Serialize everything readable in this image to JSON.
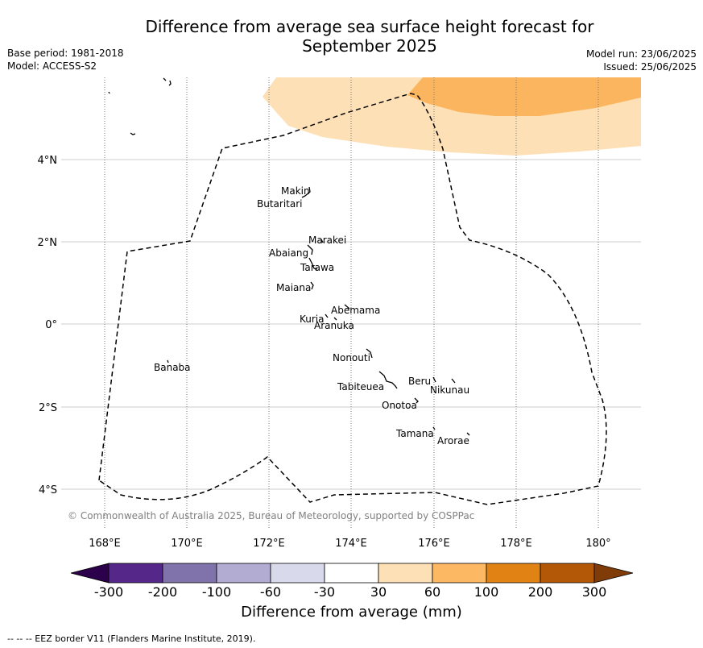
{
  "title_line1": "Difference from average sea surface height forecast for",
  "title_line2": "September 2025",
  "meta": {
    "base_period": "Base period: 1981-2018",
    "model": "Model: ACCESS-S2",
    "model_run": "Model run: 23/06/2025",
    "issued": "Issued: 25/06/2025"
  },
  "map": {
    "lat_labels": [
      "4°N",
      "2°N",
      "0°",
      "2°S",
      "4°S"
    ],
    "lon_labels": [
      "168°E",
      "170°E",
      "172°E",
      "174°E",
      "176°E",
      "178°E",
      "180°"
    ],
    "place_labels": [
      "Makin",
      "Butaritari",
      "Marakei",
      "Abaiang",
      "Tarawa",
      "Maiana",
      "Abemama",
      "Kuria",
      "Aranuka",
      "Nonouti",
      "Banaba",
      "Beru",
      "Nikunau",
      "Tabiteuea",
      "Onotoa",
      "Tamana",
      "Arorae"
    ],
    "copyright": "© Commonwealth of Australia 2025, Bureau of Meteorology, supported by COSPPac",
    "shading_colors": {
      "30_60": "#fde0b6",
      "60_100": "#fbb55f"
    },
    "eez_line_style": "dashed black",
    "grid": "on"
  },
  "colorbar": {
    "ticks": [
      "-300",
      "-200",
      "-100",
      "-60",
      "-30",
      "30",
      "60",
      "100",
      "200",
      "300"
    ],
    "colors": [
      "#2d004b",
      "#542788",
      "#8073ac",
      "#b2abd2",
      "#d8daeb",
      "#ffffff",
      "#fee0b6",
      "#fdb863",
      "#e08214",
      "#b35806",
      "#7f3b08"
    ],
    "title": "Difference from average (mm)"
  },
  "footer": "--  --  -- EEZ border V11 (Flanders Marine Institute, 2019)."
}
